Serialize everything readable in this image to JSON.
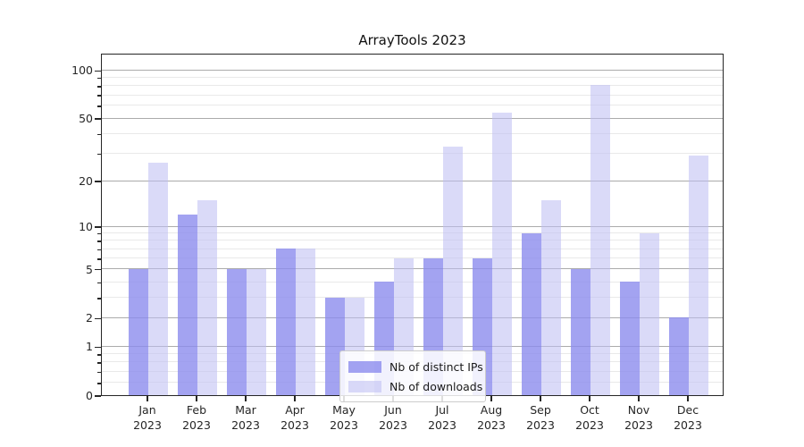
{
  "title": "ArrayTools 2023",
  "chart_data": {
    "type": "bar",
    "title": "ArrayTools 2023",
    "categories": [
      "Jan",
      "Feb",
      "Mar",
      "Apr",
      "May",
      "Jun",
      "Jul",
      "Aug",
      "Sep",
      "Oct",
      "Nov",
      "Dec"
    ],
    "category_year": "2023",
    "series": [
      {
        "name": "Nb of distinct IPs",
        "color": "rgba(140,140,237,0.8)",
        "values": [
          5,
          12,
          5,
          7,
          3,
          4,
          6,
          6,
          9,
          5,
          4,
          2
        ]
      },
      {
        "name": "Nb of downloads",
        "color": "rgba(190,190,243,0.57)",
        "values": [
          26,
          15,
          5,
          7,
          3,
          6,
          33,
          54,
          15,
          81,
          9,
          29
        ]
      }
    ],
    "yscale": "log1p",
    "ylim": [
      0,
      128
    ],
    "yticks": [
      0,
      1,
      2,
      5,
      10,
      20,
      50,
      100
    ],
    "minor_yticks": [
      0.2,
      0.4,
      0.6,
      0.8,
      3,
      4,
      6,
      7,
      8,
      9,
      30,
      40,
      60,
      70,
      80,
      90
    ],
    "grid": true,
    "legend_position": "lower center"
  }
}
